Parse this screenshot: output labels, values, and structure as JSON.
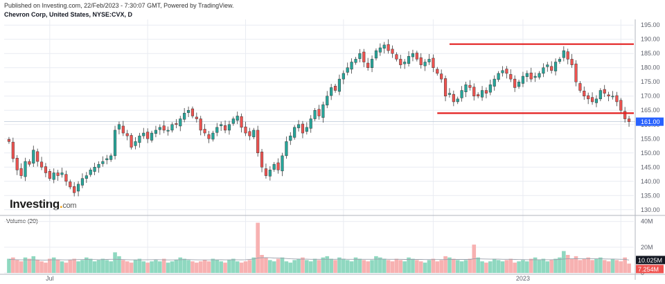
{
  "header": {
    "published": "Published on Investing.com, 22/Feb/2023 - 7:30:07 GMT, Powered by TradingView.",
    "symbol": "Chevron Corp, United States, NYSE:CVX, D"
  },
  "volume_label": "Volume (20)",
  "logo": {
    "text": "Investing",
    "suffix": "com"
  },
  "colors": {
    "up": "#26a69a",
    "down": "#ef5350",
    "resistance": "#e31e1e",
    "volume_up": "#8fd8c0",
    "volume_down": "#f7b1b1",
    "grid": "#e9ecf2"
  },
  "chart_data": [
    {
      "type": "candlestick",
      "title": "Chevron Corp, United States, NYSE:CVX, D",
      "x_labels": [
        "Jul",
        "2023"
      ],
      "ylim": [
        128,
        197
      ],
      "y_ticks": [
        "195.00",
        "190.00",
        "185.00",
        "180.00",
        "175.00",
        "170.00",
        "165.00",
        "160.00",
        "155.00",
        "150.00",
        "145.00",
        "140.00",
        "135.00",
        "130.00"
      ],
      "last_price_label": "161.00",
      "last_price": 161.0,
      "horizontal_lines": [
        188.3,
        164.0
      ],
      "closes": [
        154,
        148,
        144,
        142,
        147,
        146,
        151,
        147,
        145,
        143,
        141,
        143,
        142,
        143,
        140,
        138,
        136,
        139,
        141,
        142,
        144,
        145,
        146,
        147,
        148,
        149,
        158,
        160,
        157,
        156,
        152,
        154,
        156,
        157,
        155,
        157,
        158,
        159,
        158,
        158,
        160,
        160,
        162,
        164,
        165,
        163,
        162,
        158,
        157,
        155,
        157,
        159,
        160,
        158,
        160,
        162,
        163,
        159,
        157,
        156,
        158,
        150,
        145,
        142,
        144,
        146,
        144,
        149,
        154,
        156,
        159,
        160,
        157,
        159,
        162,
        165,
        163,
        167,
        170,
        173,
        172,
        176,
        178,
        180,
        182,
        183,
        185,
        182,
        180,
        183,
        186,
        187,
        188,
        186,
        185,
        183,
        181,
        182,
        184,
        185,
        183,
        181,
        182,
        183,
        180,
        178,
        176,
        170,
        171,
        168,
        169,
        172,
        174,
        173,
        170,
        170,
        172,
        171,
        174,
        176,
        178,
        179,
        178,
        176,
        173,
        175,
        177,
        178,
        176,
        177,
        178,
        180,
        181,
        179,
        182,
        183,
        186,
        183,
        181,
        175,
        172,
        170,
        169,
        168,
        169,
        172,
        171,
        170,
        170,
        168,
        165,
        162,
        161
      ]
    },
    {
      "type": "bar",
      "title": "Volume (20)",
      "y_ticks": [
        "40M",
        "20M",
        "0"
      ],
      "ylim": [
        0,
        42
      ],
      "last_volume_label": "7.254M",
      "average_label": "10.025M",
      "values": [
        11,
        12,
        10,
        9,
        12,
        11,
        13,
        10,
        9,
        8,
        11,
        12,
        10,
        9,
        8,
        10,
        11,
        9,
        10,
        12,
        11,
        9,
        10,
        11,
        10,
        9,
        16,
        13,
        10,
        9,
        8,
        10,
        11,
        9,
        8,
        9,
        10,
        9,
        11,
        8,
        9,
        10,
        12,
        11,
        10,
        9,
        8,
        9,
        10,
        9,
        11,
        10,
        9,
        8,
        10,
        11,
        9,
        8,
        9,
        10,
        12,
        39,
        14,
        12,
        10,
        9,
        11,
        12,
        9,
        8,
        10,
        11,
        12,
        10,
        9,
        11,
        10,
        12,
        13,
        11,
        10,
        12,
        11,
        10,
        9,
        12,
        11,
        10,
        9,
        10,
        13,
        12,
        11,
        10,
        9,
        11,
        10,
        9,
        12,
        11,
        10,
        9,
        8,
        10,
        11,
        9,
        10,
        13,
        12,
        11,
        10,
        9,
        10,
        11,
        22,
        12,
        9,
        8,
        9,
        11,
        10,
        9,
        10,
        11,
        8,
        9,
        10,
        9,
        11,
        12,
        10,
        11,
        9,
        10,
        11,
        12,
        17,
        14,
        11,
        13,
        10,
        11,
        12,
        10,
        11,
        12,
        10,
        9,
        11,
        10,
        9,
        12,
        7.254
      ],
      "average": [
        10.5,
        10.4,
        10.3,
        10.2,
        10.2,
        10.1,
        10.2,
        10.1,
        10.0,
        10.0,
        10.1,
        10.2,
        10.3,
        10.2,
        10.1,
        10.2,
        10.3,
        10.4,
        10.4,
        10.5,
        10.4,
        10.4,
        10.3,
        10.4,
        10.5,
        10.6,
        10.6,
        10.5,
        10.4,
        10.3,
        10.2,
        10.2,
        10.1,
        10.2,
        10.3,
        10.3,
        10.4,
        10.3,
        10.2,
        10.1,
        10.1,
        10.2,
        10.3,
        10.4,
        10.4,
        10.3,
        10.2,
        10.1,
        10.1,
        10.1,
        10.2,
        10.2,
        10.3,
        10.2,
        10.2,
        10.3,
        10.2,
        10.2,
        10.3,
        10.5,
        10.8,
        11.6,
        11.8,
        11.9,
        11.8,
        11.6,
        11.5,
        11.4,
        11.2,
        11.0,
        10.9,
        10.8,
        10.7,
        10.7,
        10.6,
        10.6,
        10.6,
        10.6,
        10.6,
        10.6,
        10.6,
        10.7,
        10.7,
        10.6,
        10.6,
        10.6,
        10.6,
        10.6,
        10.6,
        10.6,
        10.7,
        10.7,
        10.7,
        10.6,
        10.6,
        10.6,
        10.6,
        10.5,
        10.5,
        10.5,
        10.5,
        10.5,
        10.4,
        10.4,
        10.4,
        10.4,
        10.4,
        10.4,
        10.5,
        10.5,
        10.5,
        10.5,
        10.5,
        10.5,
        11.0,
        11.0,
        10.9,
        10.8,
        10.7,
        10.7,
        10.7,
        10.6,
        10.6,
        10.6,
        10.5,
        10.4,
        10.4,
        10.3,
        10.3,
        10.3,
        10.3,
        10.3,
        10.3,
        10.3,
        10.4,
        10.5,
        10.8,
        11.0,
        11.0,
        11.1,
        11.0,
        11.0,
        11.0,
        11.0,
        11.0,
        11.0,
        10.9,
        10.8,
        10.8,
        10.7,
        10.6,
        10.6,
        10.025
      ]
    }
  ]
}
